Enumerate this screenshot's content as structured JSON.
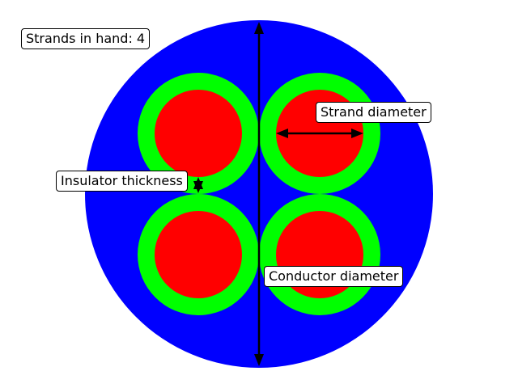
{
  "labels": {
    "strands_in_hand": "Strands in hand: 4",
    "strand_diameter": "Strand diameter",
    "insulator_thickness": "Insulator thickness",
    "conductor_diameter": "Conductor diameter"
  },
  "colors": {
    "conductor_outer": "#0000ff",
    "insulator": "#00ff00",
    "strand": "#ff0000",
    "arrow": "#000000",
    "background": "#ffffff"
  },
  "strands": [
    {
      "id": "top-left"
    },
    {
      "id": "top-right"
    },
    {
      "id": "bottom-left"
    },
    {
      "id": "bottom-right"
    }
  ]
}
